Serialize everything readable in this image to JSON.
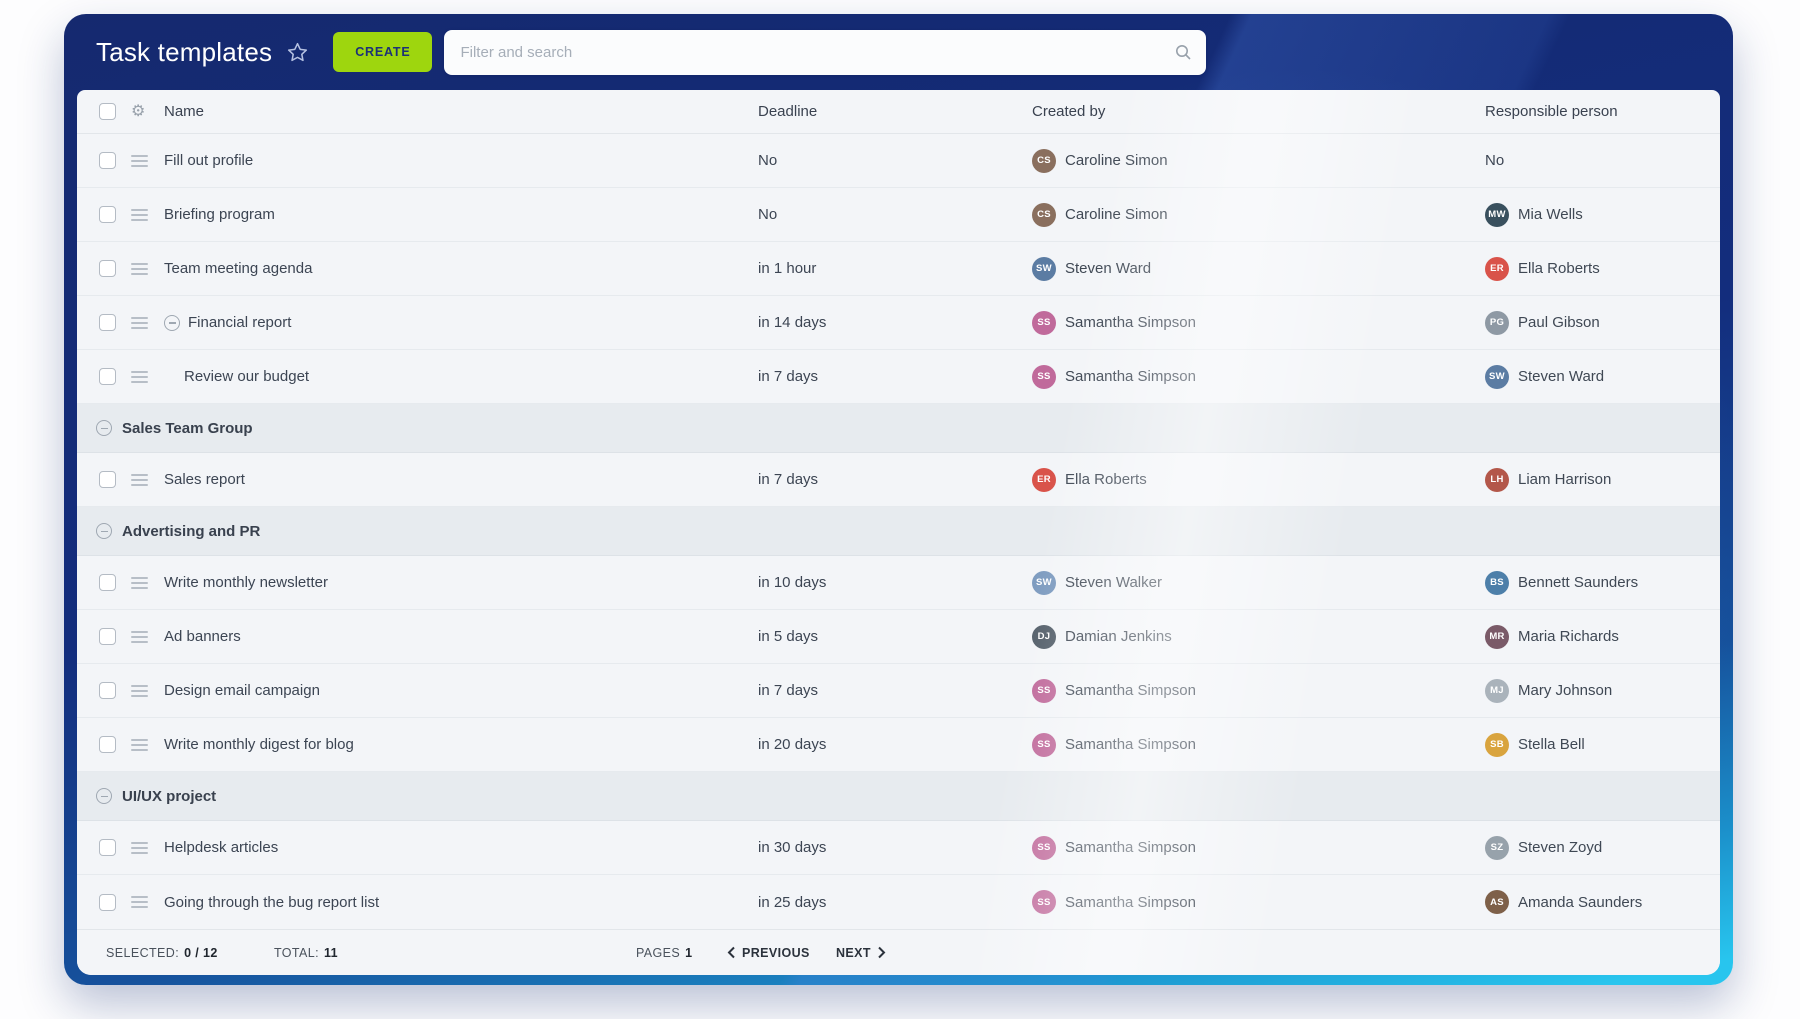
{
  "header": {
    "title": "Task templates",
    "create_label": "CREATE",
    "search_placeholder": "Filter and search"
  },
  "icons": {
    "favorite": "star-outline",
    "search": "magnifier",
    "settings": "gear",
    "row_drag": "hamburger-handle",
    "collapse": "minus-circle",
    "previous": "chevron-left",
    "next": "chevron-right"
  },
  "colors": {
    "window_top": "#15296f",
    "window_bottom": "#28c5ee",
    "create_button": "#9ed60e",
    "create_button_text": "#1c3177",
    "table_bg": "#f3f5f8",
    "group_row_bg": "#e7ebef",
    "row_border": "#e6eaee",
    "text_primary": "#3c4553"
  },
  "table": {
    "columns": [
      {
        "label": "Name"
      },
      {
        "label": "Deadline"
      },
      {
        "label": "Created by"
      },
      {
        "label": "Responsible person"
      }
    ],
    "people": {
      "Caroline Simon": {
        "initials": "CS",
        "color": "#8a6f5e"
      },
      "Steven Ward": {
        "initials": "SW",
        "color": "#5b7ca3"
      },
      "Samantha Simpson": {
        "initials": "SS",
        "color": "#c06a9b"
      },
      "Mia Wells": {
        "initials": "MW",
        "color": "#39505e"
      },
      "Ella Roberts": {
        "initials": "ER",
        "color": "#d9534a"
      },
      "Paul Gibson": {
        "initials": "PG",
        "color": "#8e99a4"
      },
      "Liam Harrison": {
        "initials": "LH",
        "color": "#b3574a"
      },
      "Steven Walker": {
        "initials": "SW",
        "color": "#7e9cc0"
      },
      "Bennett Saunders": {
        "initials": "BS",
        "color": "#4d7fa9"
      },
      "Damian Jenkins": {
        "initials": "DJ",
        "color": "#55606b"
      },
      "Maria Richards": {
        "initials": "MR",
        "color": "#7a5a68"
      },
      "Mary Johnson": {
        "initials": "MJ",
        "color": "#aab3bb"
      },
      "Stella Bell": {
        "initials": "SB",
        "color": "#d9a43e"
      },
      "Steven Zoyd": {
        "initials": "SZ",
        "color": "#97a2ab"
      },
      "Amanda Saunders": {
        "initials": "AS",
        "color": "#7e6049"
      }
    },
    "rows": [
      {
        "type": "task",
        "name": "Fill out profile",
        "deadline": "No",
        "created_by": "Caroline Simon",
        "responsible": "No",
        "responsible_is_person": false
      },
      {
        "type": "task",
        "name": "Briefing program",
        "deadline": "No",
        "created_by": "Caroline Simon",
        "responsible": "Mia Wells",
        "responsible_is_person": true
      },
      {
        "type": "task",
        "name": "Team meeting agenda",
        "deadline": "in 1 hour",
        "created_by": "Steven Ward",
        "responsible": "Ella Roberts",
        "responsible_is_person": true
      },
      {
        "type": "task",
        "name": "Financial report",
        "collapsible": true,
        "deadline": "in 14 days",
        "created_by": "Samantha Simpson",
        "responsible": "Paul Gibson",
        "responsible_is_person": true
      },
      {
        "type": "task",
        "name": "Review our budget",
        "indent": true,
        "deadline": "in 7 days",
        "created_by": "Samantha Simpson",
        "responsible": "Steven Ward",
        "responsible_is_person": true
      },
      {
        "type": "group",
        "name": "Sales Team Group"
      },
      {
        "type": "task",
        "name": "Sales report",
        "deadline": "in 7 days",
        "created_by": "Ella Roberts",
        "responsible": "Liam Harrison",
        "responsible_is_person": true
      },
      {
        "type": "group",
        "name": "Advertising and PR"
      },
      {
        "type": "task",
        "name": "Write monthly newsletter",
        "deadline": "in 10 days",
        "created_by": "Steven Walker",
        "responsible": "Bennett Saunders",
        "responsible_is_person": true
      },
      {
        "type": "task",
        "name": "Ad banners",
        "deadline": "in 5 days",
        "created_by": "Damian Jenkins",
        "responsible": "Maria Richards",
        "responsible_is_person": true
      },
      {
        "type": "task",
        "name": "Design email campaign",
        "deadline": "in 7 days",
        "created_by": "Samantha Simpson",
        "responsible": "Mary Johnson",
        "responsible_is_person": true
      },
      {
        "type": "task",
        "name": "Write monthly digest for blog",
        "deadline": "in 20 days",
        "created_by": "Samantha Simpson",
        "responsible": "Stella Bell",
        "responsible_is_person": true
      },
      {
        "type": "group",
        "name": "UI/UX project"
      },
      {
        "type": "task",
        "name": "Helpdesk articles",
        "deadline": "in 30 days",
        "created_by": "Samantha Simpson",
        "responsible": "Steven Zoyd",
        "responsible_is_person": true
      },
      {
        "type": "task",
        "name": "Going through the bug report list",
        "deadline": "in 25 days",
        "created_by": "Samantha Simpson",
        "responsible": "Amanda Saunders",
        "responsible_is_person": true
      }
    ]
  },
  "footer": {
    "selected_label": "SELECTED:",
    "selected_value": "0 / 12",
    "total_label": "TOTAL:",
    "total_value": "11",
    "pages_label": "PAGES",
    "pages_value": "1",
    "previous_label": "PREVIOUS",
    "next_label": "NEXT"
  }
}
